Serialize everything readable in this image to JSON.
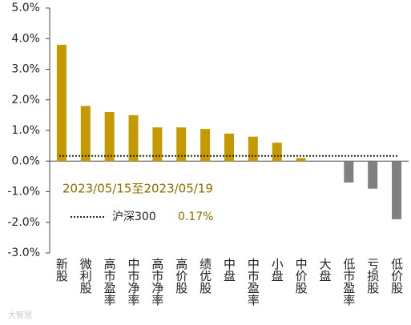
{
  "chart_data": {
    "type": "bar",
    "annotation": "2023/05/15至2023/05/19",
    "categories": [
      "新股",
      "微利股",
      "高市盈率",
      "中市净率",
      "高市净率",
      "高价股",
      "绩优股",
      "中盘",
      "中市盈率",
      "小盘",
      "中价股",
      "大盘",
      "低市盈率",
      "亏损股",
      "低价股"
    ],
    "values": [
      3.8,
      1.8,
      1.6,
      1.5,
      1.1,
      1.1,
      1.05,
      0.9,
      0.8,
      0.6,
      0.1,
      0,
      -0.7,
      -0.9,
      -1.9
    ],
    "color": "#c49a00",
    "negative_color": "#808080",
    "benchmark": {
      "name": "沪深300",
      "value": 0.17,
      "value_label": "0.17%",
      "color": "#222222"
    },
    "ylim": [
      -3,
      5
    ],
    "yticks": [
      {
        "value": -3,
        "label": "-3.0%"
      },
      {
        "value": -2,
        "label": "-2.0%"
      },
      {
        "value": -1,
        "label": "-1.0%"
      },
      {
        "value": 0,
        "label": "0.0%"
      },
      {
        "value": 1,
        "label": "1.0%"
      },
      {
        "value": 2,
        "label": "2.0%"
      },
      {
        "value": 3,
        "label": "3.0%"
      },
      {
        "value": 4,
        "label": "4.0%"
      },
      {
        "value": 5,
        "label": "5.0%"
      }
    ],
    "watermark": "大智慧"
  }
}
